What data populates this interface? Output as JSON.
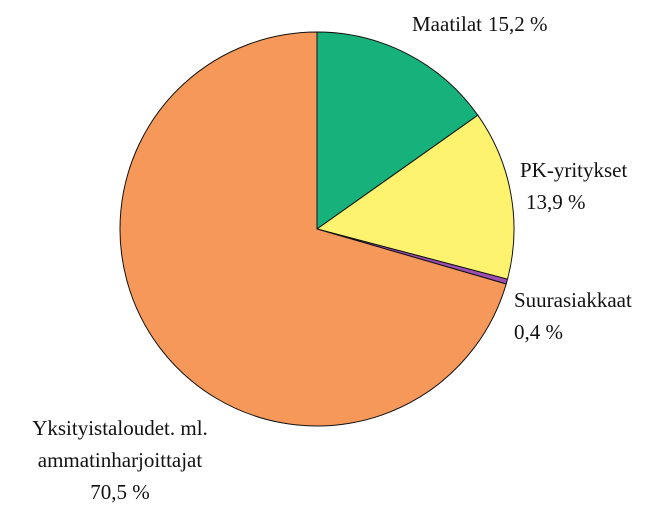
{
  "chart_data": {
    "type": "pie",
    "categories": [
      "Maatilat",
      "PK-yritykset",
      "Suurasiakkaat",
      "Yksityistaloudet. ml. ammatinharjoittajat"
    ],
    "values": [
      15.2,
      13.9,
      0.4,
      70.5
    ],
    "value_labels": [
      "15,2 %",
      "13,9 %",
      "0,4 %",
      "70,5 %"
    ],
    "colors": [
      "#17b27b",
      "#fdf36f",
      "#9b4fb0",
      "#f5985a"
    ]
  }
}
